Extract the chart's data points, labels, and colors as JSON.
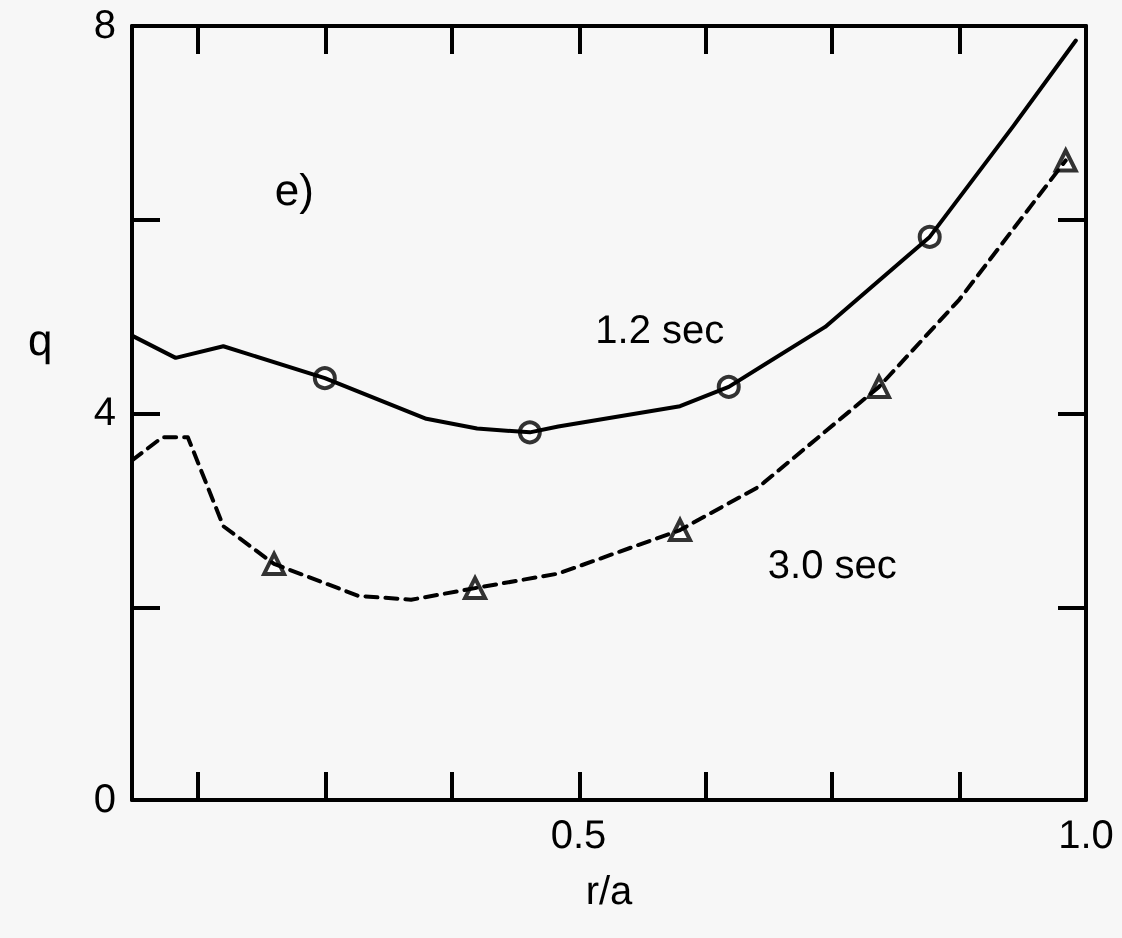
{
  "chart_data": {
    "type": "line",
    "xlabel": "r/a",
    "ylabel": "q",
    "annotations": [
      "e)"
    ],
    "xlim": [
      0.06,
      1.0
    ],
    "xticks": [
      {
        "value": 0.125,
        "label": null
      },
      {
        "value": 0.25,
        "label": null
      },
      {
        "value": 0.375,
        "label": null
      },
      0.5,
      {
        "value": 0.625,
        "label": null
      },
      {
        "value": 0.75,
        "label": null
      },
      {
        "value": 0.875,
        "label": null
      },
      {
        "value": 1.0,
        "label": "1.0"
      }
    ],
    "ylim": [
      0,
      8
    ],
    "yticks": [
      0,
      {
        "value": 2,
        "label": null
      },
      4,
      {
        "value": 6,
        "label": null
      },
      8
    ],
    "grid": false,
    "legend": false,
    "series": [
      {
        "name": "1.2 sec",
        "color": "#000000",
        "line_style": "solid",
        "marker": "none",
        "x": [
          0.06,
          0.103,
          0.15,
          0.25,
          0.35,
          0.4,
          0.452,
          0.48,
          0.6,
          0.648,
          0.743,
          0.846,
          0.928,
          0.99
        ],
        "values": [
          4.8,
          4.57,
          4.69,
          4.36,
          3.94,
          3.84,
          3.8,
          3.86,
          4.07,
          4.27,
          4.89,
          5.82,
          6.96,
          7.85
        ]
      },
      {
        "name": "3.0 sec",
        "color": "#000000",
        "line_style": "dashed",
        "marker": "none",
        "x": [
          0.06,
          0.09,
          0.115,
          0.15,
          0.2,
          0.283,
          0.335,
          0.398,
          0.48,
          0.6,
          0.678,
          0.796,
          0.875,
          0.98
        ],
        "values": [
          3.51,
          3.75,
          3.75,
          2.83,
          2.44,
          2.11,
          2.07,
          2.19,
          2.34,
          2.79,
          3.24,
          4.27,
          5.17,
          6.61
        ]
      },
      {
        "type": "scatter",
        "color": "#000000",
        "marker": "circle",
        "x": [
          0.25,
          0.452,
          0.648,
          0.846
        ],
        "values": [
          4.36,
          3.8,
          4.27,
          5.82
        ]
      },
      {
        "type": "scatter",
        "color": "#000000",
        "marker": "triangle",
        "x": [
          0.2,
          0.398,
          0.6,
          0.796,
          0.98
        ],
        "values": [
          2.44,
          2.19,
          2.79,
          4.27,
          6.61
        ]
      }
    ]
  }
}
